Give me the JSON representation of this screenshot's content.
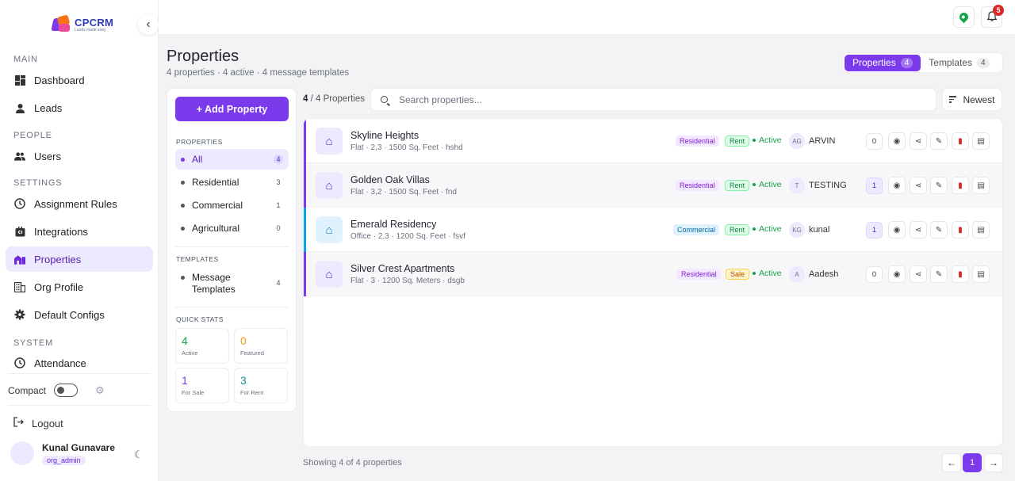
{
  "app": {
    "logo_title": "CPCRM",
    "logo_tagline": "Leads made easy"
  },
  "colors": {
    "accent": "#7c3aed",
    "success": "#16a34a",
    "danger": "#dc2626",
    "accent_light": "#ede9fe"
  },
  "sidebar": {
    "sections": [
      {
        "label": "MAIN"
      },
      {
        "label": "PEOPLE"
      },
      {
        "label": "SETTINGS"
      },
      {
        "label": "SYSTEM"
      }
    ],
    "items": [
      {
        "label": "Dashboard",
        "icon": "grid-icon"
      },
      {
        "label": "Leads",
        "icon": "person-icon"
      },
      {
        "label": "Users",
        "icon": "people-icon"
      },
      {
        "label": "Assignment Rules",
        "icon": "clock-icon"
      },
      {
        "label": "Integrations",
        "icon": "plug-icon"
      },
      {
        "label": "Properties",
        "icon": "buildings-icon",
        "active": true
      },
      {
        "label": "Org Profile",
        "icon": "building-icon"
      },
      {
        "label": "Default Configs",
        "icon": "gear-icon"
      },
      {
        "label": "Attendance",
        "icon": "clock-icon"
      }
    ],
    "compact_label": "Compact",
    "logout_label": "Logout",
    "user": {
      "name": "Kunal Gunavare",
      "role": "org_admin"
    }
  },
  "topbar": {
    "notification_count": "5"
  },
  "header": {
    "title": "Properties",
    "subtitle": "4 properties · 4 active · 4 message templates",
    "tabs": [
      {
        "label": "Properties",
        "count": "4",
        "active": true
      },
      {
        "label": "Templates",
        "count": "4",
        "active": false
      }
    ]
  },
  "filters": {
    "add_button": "+ Add Property",
    "properties_label": "PROPERTIES",
    "property_items": [
      {
        "label": "All",
        "count": "4"
      },
      {
        "label": "Residential",
        "count": "3"
      },
      {
        "label": "Commercial",
        "count": "1"
      },
      {
        "label": "Agricultural",
        "count": "0"
      }
    ],
    "templates_label": "TEMPLATES",
    "template_items": [
      {
        "label": "Message Templates",
        "count": "4"
      }
    ],
    "quick_stats_label": "QUICK STATS",
    "stats": [
      {
        "value": "4",
        "label": "Active",
        "color": "#16a34a"
      },
      {
        "value": "0",
        "label": "Featured",
        "color": "#f59e0b"
      },
      {
        "value": "1",
        "label": "For Sale",
        "color": "#7c3aed"
      },
      {
        "value": "3",
        "label": "For Rent",
        "color": "#0d9488"
      }
    ]
  },
  "toolbar": {
    "count_shown": "4",
    "count_total": "/ 4 Properties",
    "search_placeholder": "Search properties...",
    "sort_label": "Newest"
  },
  "properties": [
    {
      "name": "Skyline Heights",
      "meta": "Flat · 2,3 · 1500 Sq. Feet · hshd",
      "category": "Residential",
      "listing": "Rent",
      "status": "Active",
      "assignee_initials": "AG",
      "assignee": "ARVIN",
      "messages": "0",
      "bar_color": "#7c3aed"
    },
    {
      "name": "Golden Oak Villas",
      "meta": "Flat · 3,2 · 1500 Sq. Feet · fnd",
      "category": "Residential",
      "listing": "Rent",
      "status": "Active",
      "assignee_initials": "T",
      "assignee": "TESTING",
      "messages": "1",
      "bar_color": "#7c3aed"
    },
    {
      "name": "Emerald Residency",
      "meta": "Office · 2,3 · 1200 Sq. Feet · fsvf",
      "category": "Commercial",
      "listing": "Rent",
      "status": "Active",
      "assignee_initials": "KG",
      "assignee": "kunal",
      "messages": "1",
      "bar_color": "#0ea5e9"
    },
    {
      "name": "Silver Crest Apartments",
      "meta": "Flat · 3 · 1200 Sq. Meters · dsgb",
      "category": "Residential",
      "listing": "Sale",
      "status": "Active",
      "assignee_initials": "A",
      "assignee": "Aadesh",
      "messages": "0",
      "bar_color": "#7c3aed"
    }
  ],
  "footer": {
    "showing": "Showing 4 of 4 properties",
    "current_page": "1"
  }
}
